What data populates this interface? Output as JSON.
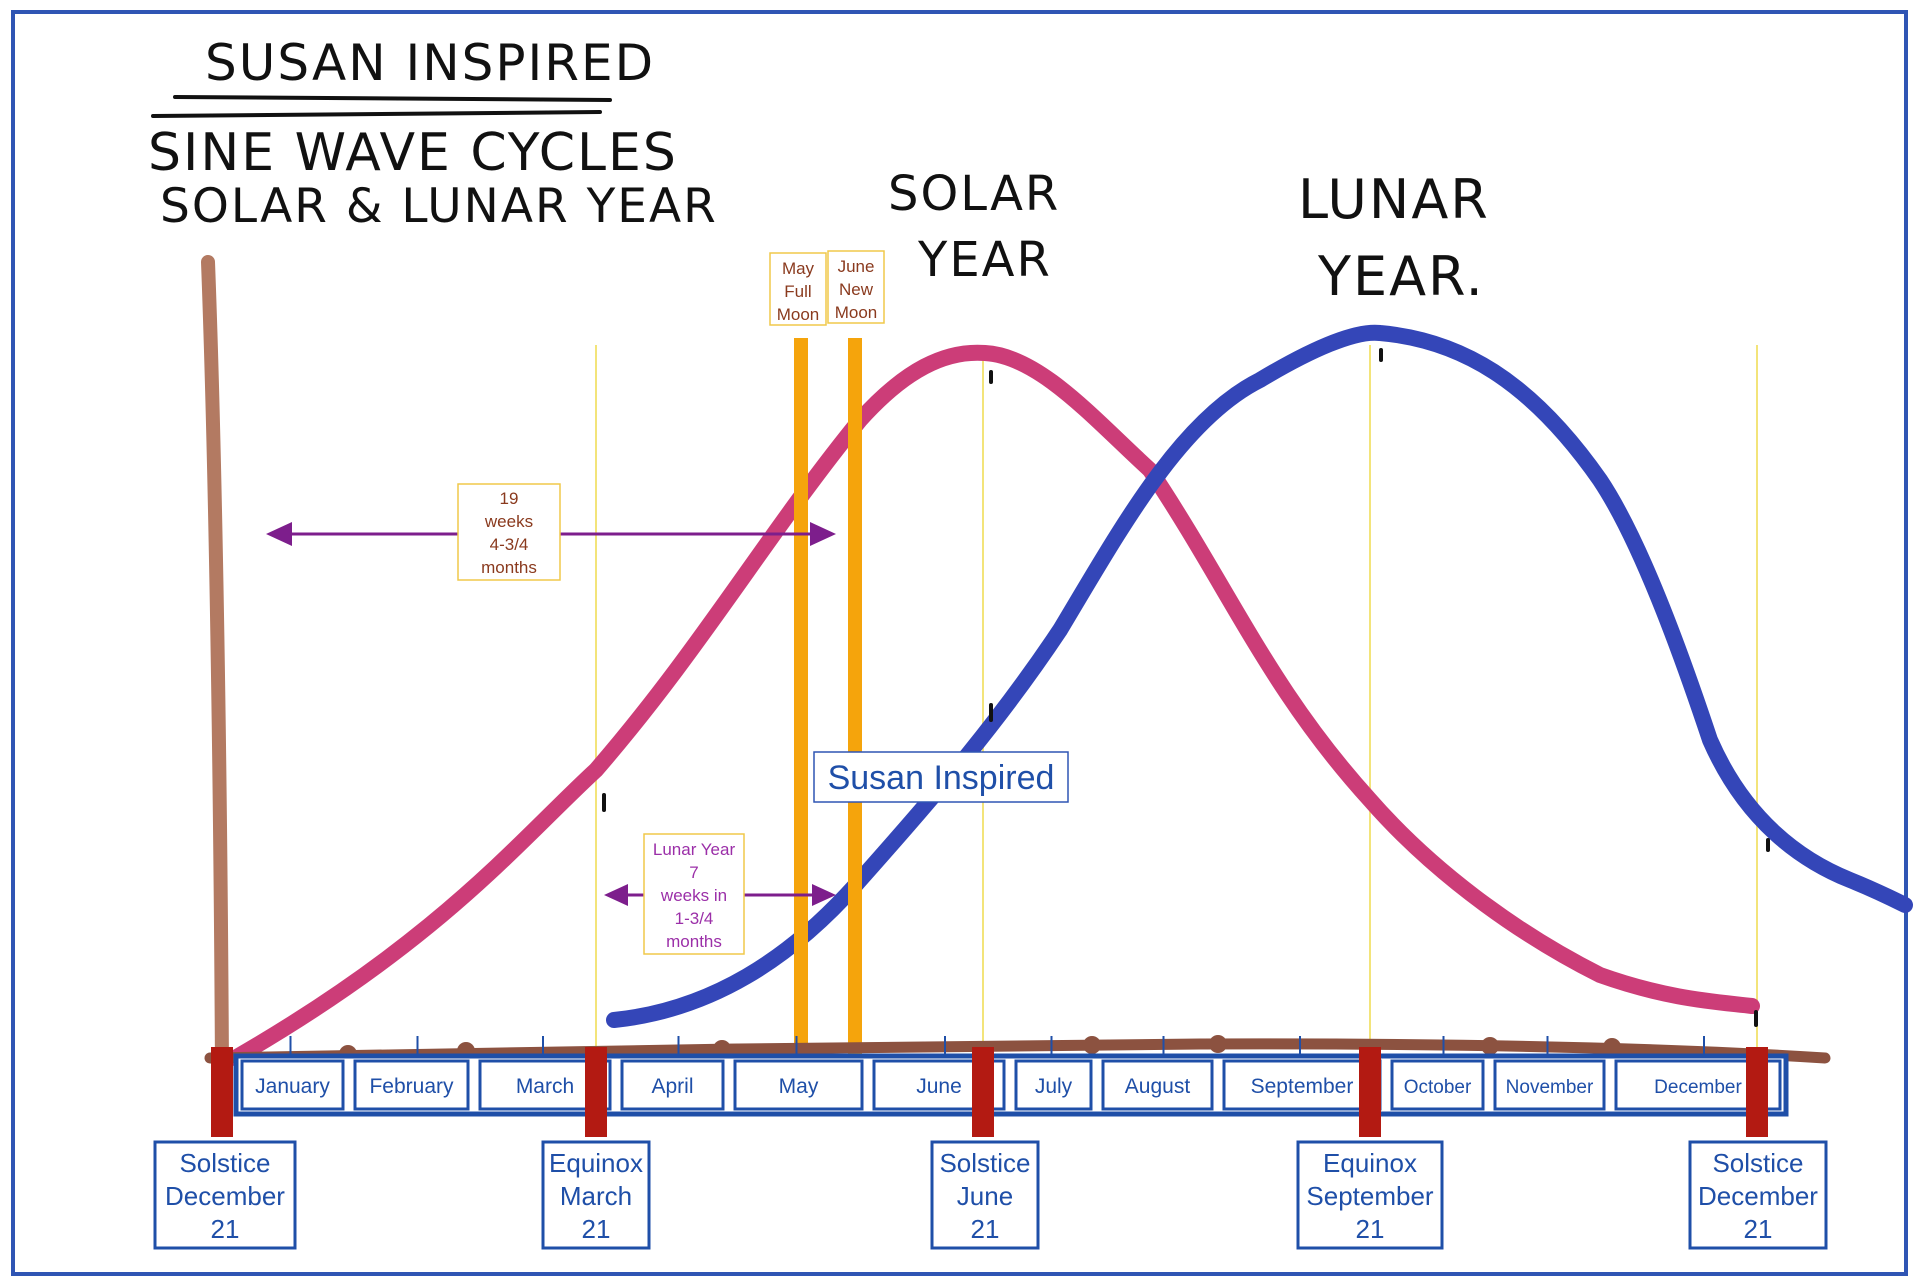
{
  "title": {
    "line1": "SUSAN INSPIRED",
    "line2": "SINE WAVE CYCLES",
    "line3": "SOLAR & LUNAR YEAR"
  },
  "curve_labels": {
    "solar": [
      "SOLAR",
      "YEAR"
    ],
    "lunar": [
      "LUNAR",
      "YEAR."
    ]
  },
  "watermark": "Susan Inspired",
  "moon_labels": [
    [
      "May",
      "Full",
      "Moon"
    ],
    [
      "June",
      "New",
      "Moon"
    ]
  ],
  "annotations": {
    "nineteen_weeks": [
      "19",
      "weeks",
      "4-3/4",
      "months"
    ],
    "lunar_year": [
      "Lunar Year",
      "7",
      "weeks in",
      "1-3/4",
      "months"
    ]
  },
  "months": [
    "January",
    "February",
    "March",
    "April",
    "May",
    "June",
    "July",
    "August",
    "September",
    "October",
    "November",
    "December"
  ],
  "events": [
    [
      "Solstice",
      "December",
      "21"
    ],
    [
      "Equinox",
      "March",
      "21"
    ],
    [
      "Solstice",
      "June",
      "21"
    ],
    [
      "Equinox",
      "September",
      "21"
    ],
    [
      "Solstice",
      "December",
      "21"
    ]
  ],
  "colors": {
    "frame": "#2f55b4",
    "solar": "#cc3d78",
    "lunar": "#3446b8",
    "axis": "#8c5240",
    "marker": "#b31a12",
    "moon_bar": "#f5a40c",
    "guide": "#f3e47a",
    "arrow": "#7d1e8c",
    "note_border": "#f0c94a",
    "note_text_19": "#8a3a1e",
    "note_text_lunar": "#9b2fa8",
    "month_blue": "#1f4fa8"
  }
}
